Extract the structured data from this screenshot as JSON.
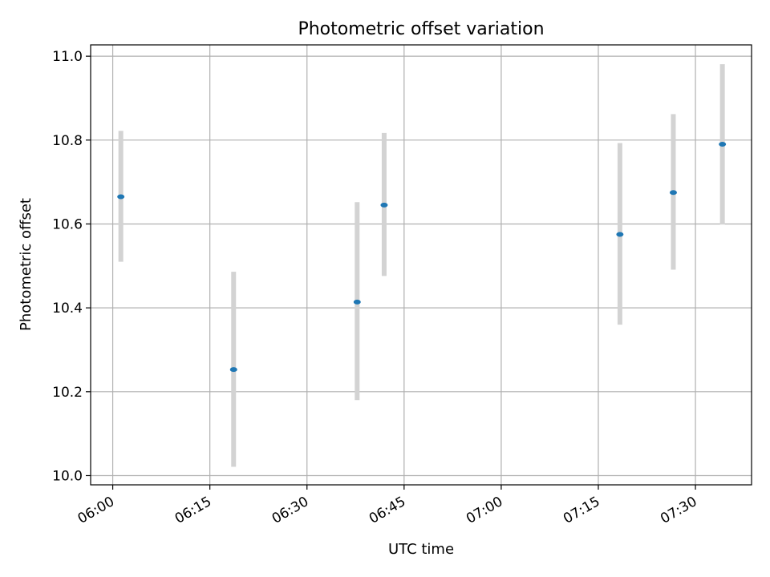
{
  "chart_data": {
    "type": "scatter",
    "title": "Photometric offset variation",
    "xlabel": "UTC time",
    "ylabel": "Photometric offset",
    "x_ticks": [
      "06:00",
      "06:15",
      "06:30",
      "06:45",
      "07:00",
      "07:15",
      "07:30"
    ],
    "y_ticks": [
      "10.0",
      "10.2",
      "10.4",
      "10.6",
      "10.8",
      "11.0"
    ],
    "xlim": [
      "05:56:35",
      "07:38:40"
    ],
    "ylim": [
      9.978,
      11.027
    ],
    "grid": true,
    "marker_color": "#1f77b4",
    "errorbar_color": "#d3d3d3",
    "series": [
      {
        "points": [
          {
            "x": "06:01:15",
            "y": 10.665,
            "lower": 10.51,
            "upper": 10.822
          },
          {
            "x": "06:18:40",
            "y": 10.253,
            "lower": 10.021,
            "upper": 10.486
          },
          {
            "x": "06:37:45",
            "y": 10.414,
            "lower": 10.18,
            "upper": 10.652
          },
          {
            "x": "06:41:55",
            "y": 10.645,
            "lower": 10.476,
            "upper": 10.817
          },
          {
            "x": "07:18:20",
            "y": 10.575,
            "lower": 10.36,
            "upper": 10.793
          },
          {
            "x": "07:26:35",
            "y": 10.675,
            "lower": 10.491,
            "upper": 10.862
          },
          {
            "x": "07:34:10",
            "y": 10.79,
            "lower": 10.599,
            "upper": 10.981
          }
        ]
      }
    ]
  }
}
